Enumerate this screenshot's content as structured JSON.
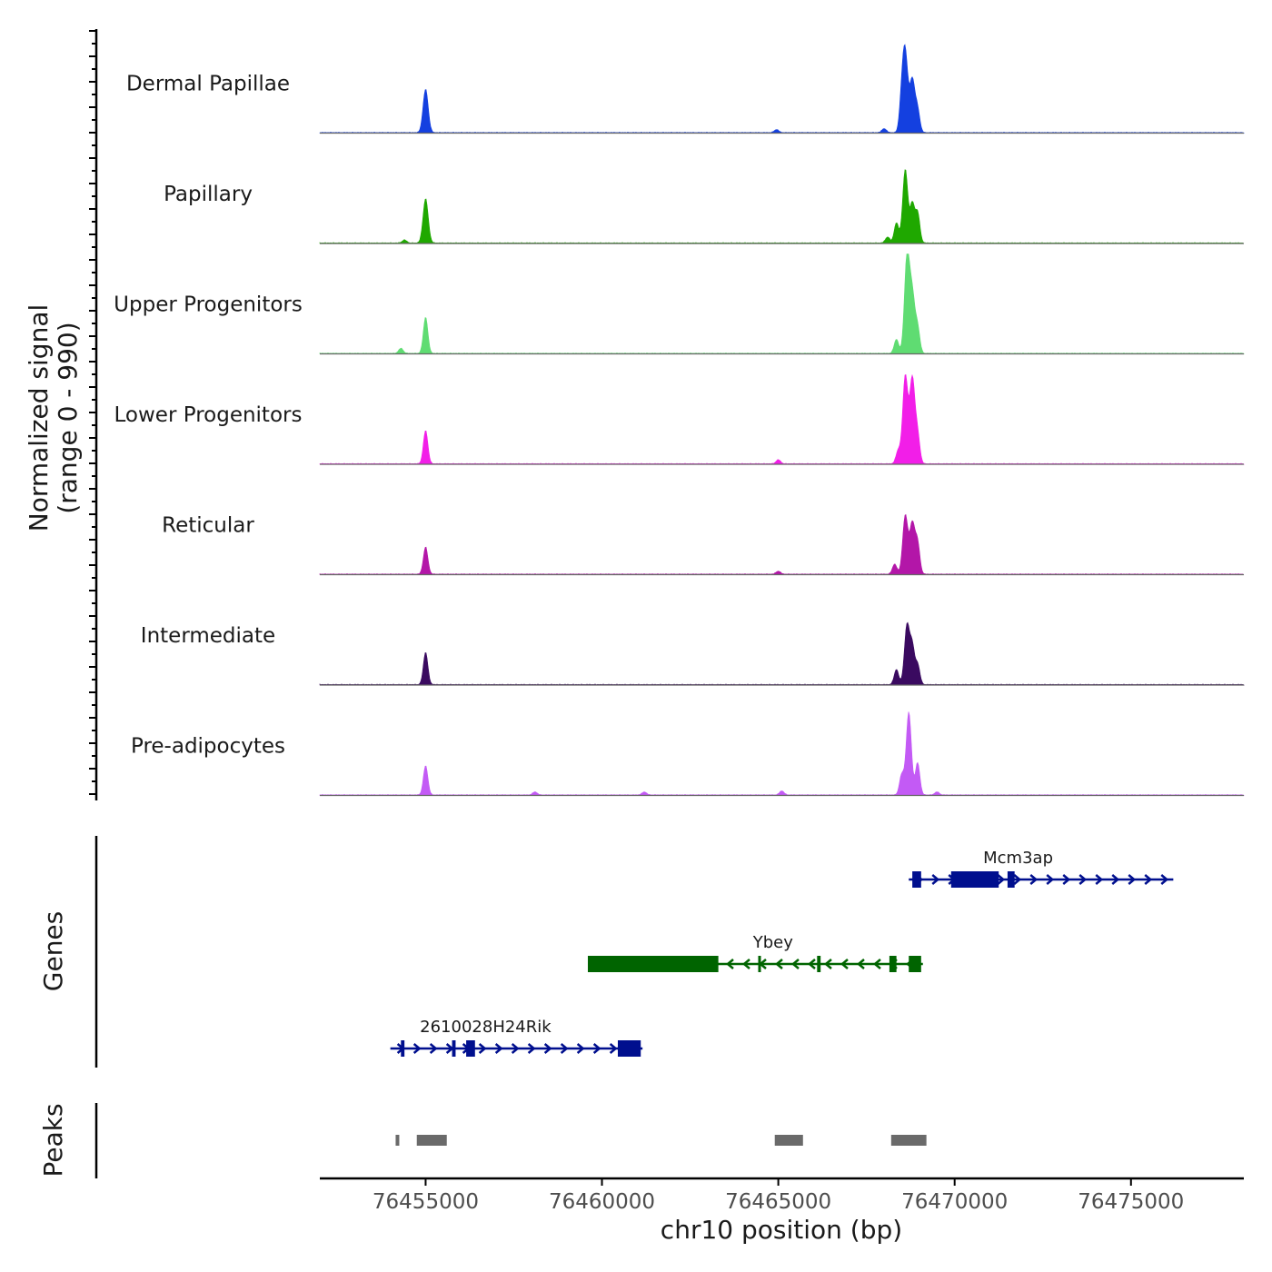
{
  "chart_data": {
    "type": "area",
    "title": "",
    "ylabel_line1": "Normalized signal",
    "ylabel_line2": "(range 0 - 990)",
    "ylim": [
      0,
      990
    ],
    "xlabel": "chr10 position (bp)",
    "xlim": [
      76452000,
      76478200
    ],
    "x_ticks": [
      76455000,
      76460000,
      76465000,
      76470000,
      76475000
    ],
    "x_tick_labels": [
      "76455000",
      "76460000",
      "76465000",
      "76470000",
      "76475000"
    ],
    "tracks": [
      {
        "name": "Dermal Papillae",
        "color": "#1440e0",
        "peaks": [
          {
            "x": 76455000,
            "y": 430
          },
          {
            "x": 76464950,
            "y": 30
          },
          {
            "x": 76468000,
            "y": 40
          },
          {
            "x": 76468600,
            "y": 760
          },
          {
            "x": 76468800,
            "y": 520
          },
          {
            "x": 76468500,
            "y": 300
          },
          {
            "x": 76468950,
            "y": 220
          }
        ]
      },
      {
        "name": "Papillary",
        "color": "#1fa800",
        "peaks": [
          {
            "x": 76454400,
            "y": 30
          },
          {
            "x": 76455000,
            "y": 440
          },
          {
            "x": 76468600,
            "y": 730
          },
          {
            "x": 76468800,
            "y": 380
          },
          {
            "x": 76468350,
            "y": 200
          },
          {
            "x": 76468950,
            "y": 300
          },
          {
            "x": 76468100,
            "y": 60
          }
        ]
      },
      {
        "name": "Upper Progenitors",
        "color": "#5fdc72",
        "peaks": [
          {
            "x": 76454300,
            "y": 50
          },
          {
            "x": 76455000,
            "y": 360
          },
          {
            "x": 76468650,
            "y": 960
          },
          {
            "x": 76468800,
            "y": 560
          },
          {
            "x": 76468350,
            "y": 140
          },
          {
            "x": 76468950,
            "y": 250
          }
        ]
      },
      {
        "name": "Lower Progenitors",
        "color": "#f21ee8",
        "peaks": [
          {
            "x": 76455000,
            "y": 330
          },
          {
            "x": 76465000,
            "y": 40
          },
          {
            "x": 76468600,
            "y": 870
          },
          {
            "x": 76468800,
            "y": 840
          },
          {
            "x": 76468400,
            "y": 130
          },
          {
            "x": 76468950,
            "y": 280
          }
        ]
      },
      {
        "name": "Reticular",
        "color": "#b316a8",
        "peaks": [
          {
            "x": 76455000,
            "y": 270
          },
          {
            "x": 76465000,
            "y": 30
          },
          {
            "x": 76468600,
            "y": 580
          },
          {
            "x": 76468800,
            "y": 500
          },
          {
            "x": 76468300,
            "y": 100
          },
          {
            "x": 76468950,
            "y": 300
          }
        ]
      },
      {
        "name": "Intermediate",
        "color": "#3a0a60",
        "peaks": [
          {
            "x": 76455000,
            "y": 320
          },
          {
            "x": 76468650,
            "y": 590
          },
          {
            "x": 76468800,
            "y": 360
          },
          {
            "x": 76468350,
            "y": 150
          },
          {
            "x": 76468950,
            "y": 200
          }
        ]
      },
      {
        "name": "Pre-adipocytes",
        "color": "#c35af5",
        "peaks": [
          {
            "x": 76455000,
            "y": 290
          },
          {
            "x": 76458100,
            "y": 30
          },
          {
            "x": 76461200,
            "y": 30
          },
          {
            "x": 76465100,
            "y": 40
          },
          {
            "x": 76468700,
            "y": 820
          },
          {
            "x": 76468500,
            "y": 200
          },
          {
            "x": 76468950,
            "y": 320
          },
          {
            "x": 76469500,
            "y": 30
          }
        ]
      }
    ],
    "genes_label": "Genes",
    "genes": [
      {
        "name": "Mcm3ap",
        "strand": "+",
        "color": "#000f8e",
        "start": 76468700,
        "end": 76476200,
        "exons": [
          [
            76468800,
            76469050
          ],
          [
            76469900,
            76471250
          ],
          [
            76471500,
            76471700
          ]
        ]
      },
      {
        "name": "Ybey",
        "strand": "-",
        "color": "#006400",
        "start": 76459600,
        "end": 76469100,
        "exons": [
          [
            76459600,
            76463300
          ],
          [
            76464430,
            76464500
          ],
          [
            76466100,
            76466200
          ],
          [
            76468150,
            76468350
          ],
          [
            76468700,
            76469050
          ]
        ]
      },
      {
        "name": "2610028H24Rik",
        "strand": "+",
        "color": "#000f8e",
        "start": 76454000,
        "end": 76461150,
        "exons": [
          [
            76454300,
            76454400
          ],
          [
            76455750,
            76455850
          ],
          [
            76456150,
            76456400
          ],
          [
            76460450,
            76461100
          ]
        ]
      }
    ],
    "peaks_label": "Peaks",
    "peak_regions": [
      [
        76454150,
        76454230
      ],
      [
        76454750,
        76455600
      ],
      [
        76464900,
        76465700
      ],
      [
        76468200,
        76469200
      ]
    ]
  }
}
